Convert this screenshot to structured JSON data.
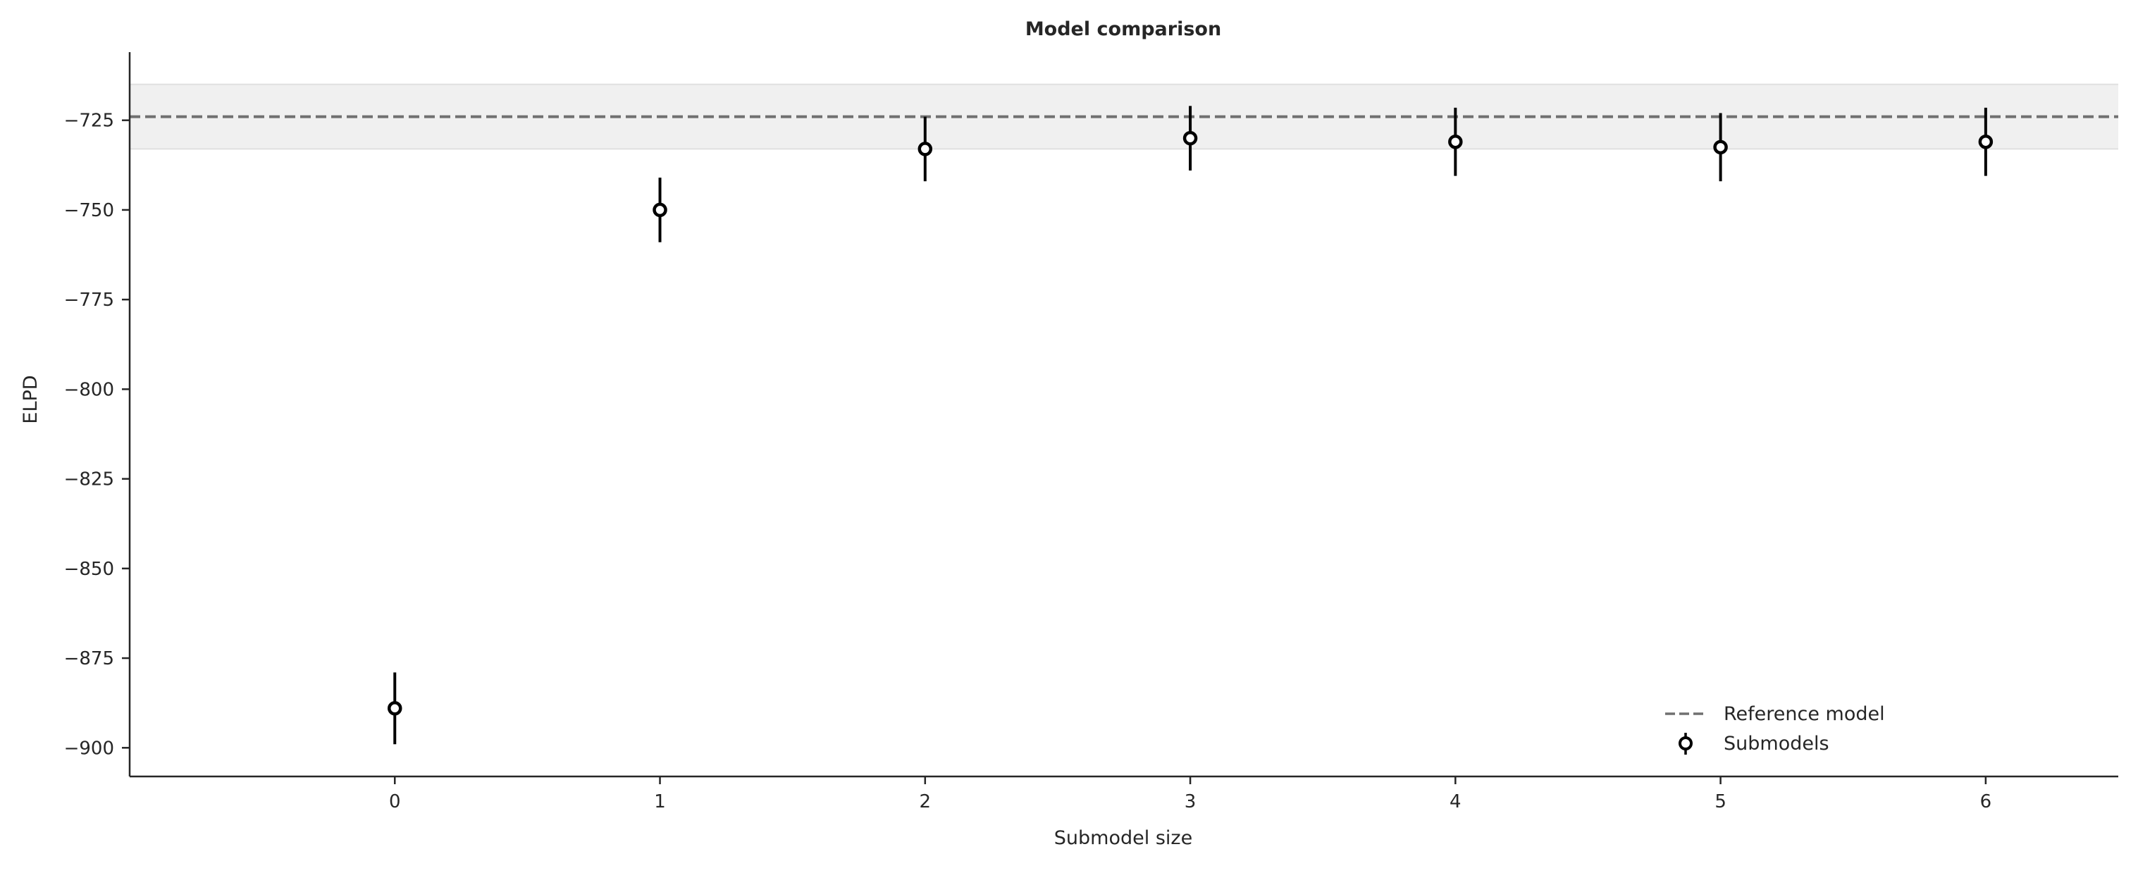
{
  "chart_data": {
    "type": "scatter",
    "title": "Model comparison",
    "xlabel": "Submodel size",
    "ylabel": "ELPD",
    "x_ticks": [
      0,
      1,
      2,
      3,
      4,
      5,
      6
    ],
    "y_ticks": [
      -725,
      -750,
      -775,
      -800,
      -825,
      -850,
      -875,
      -900
    ],
    "y_tick_labels": [
      "−725",
      "−750",
      "−775",
      "−800",
      "−825",
      "−850",
      "−875",
      "−900"
    ],
    "xlim": [
      -1,
      6.5
    ],
    "ylim": [
      -908,
      -706
    ],
    "grid": false,
    "legend_position": "lower-right",
    "reference": {
      "name": "Reference model",
      "elpd": -724,
      "band": [
        -733,
        -715
      ],
      "line_color": "#707070",
      "band_color": "#f0f0f0"
    },
    "series": [
      {
        "name": "Submodels",
        "color": "#000000",
        "x": [
          0,
          1,
          2,
          3,
          4,
          5,
          6
        ],
        "y": [
          -889,
          -750,
          -733,
          -730,
          -731,
          -732.5,
          -731
        ],
        "yerr": [
          10,
          9,
          9,
          9,
          9.5,
          9.5,
          9.5
        ]
      }
    ]
  }
}
